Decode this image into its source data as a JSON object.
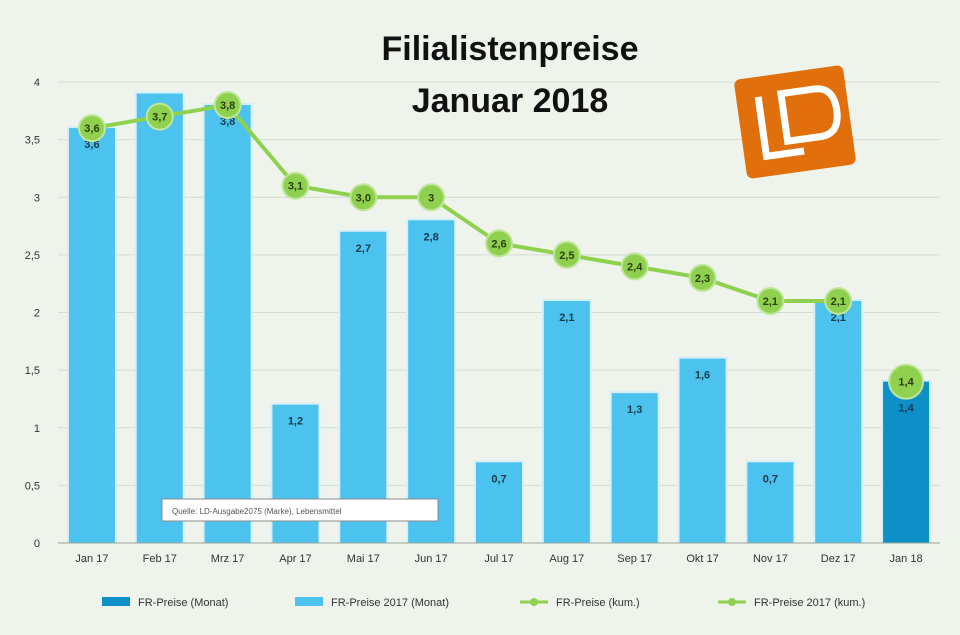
{
  "chart_data": {
    "type": "bar",
    "title_lines": [
      "Filialistenpreise",
      "Januar 2018"
    ],
    "categories": [
      "Jan 17",
      "Feb 17",
      "Mrz 17",
      "Apr 17",
      "Mai 17",
      "Jun 17",
      "Jul 17",
      "Aug 17",
      "Sep 17",
      "Okt 17",
      "Nov 17",
      "Dez 17",
      "Jan 18"
    ],
    "yticks": [
      "0",
      "0,5",
      "1",
      "1,5",
      "2",
      "2,5",
      "3",
      "3,5",
      "4"
    ],
    "ylim": [
      0,
      4
    ],
    "grid": true,
    "legend_position": "bottom",
    "series": [
      {
        "name": "FR-Preise (Monat)",
        "kind": "bar",
        "color": "#0d8fc8",
        "values": [
          null,
          null,
          null,
          null,
          null,
          null,
          null,
          null,
          null,
          null,
          null,
          null,
          1.4
        ],
        "labels": [
          "",
          "",
          "",
          "",
          "",
          "",
          "",
          "",
          "",
          "",
          "",
          "",
          "1,4"
        ]
      },
      {
        "name": "FR-Preise 2017 (Monat)",
        "kind": "bar",
        "color": "#4cc3ee",
        "values": [
          3.6,
          3.9,
          3.8,
          1.2,
          2.7,
          2.8,
          0.7,
          2.1,
          1.3,
          1.6,
          0.7,
          2.1,
          null
        ],
        "labels": [
          "3,6",
          "3,9",
          "3,8",
          "1,2",
          "2,7",
          "2,8",
          "0,7",
          "2,1",
          "1,3",
          "1,6",
          "0,7",
          "2,1",
          ""
        ]
      },
      {
        "name": "FR-Preise (kum.)",
        "kind": "line",
        "color": "#8fd14f",
        "values": [
          null,
          null,
          null,
          null,
          null,
          null,
          null,
          null,
          null,
          null,
          null,
          null,
          1.4
        ],
        "labels": [
          "",
          "",
          "",
          "",
          "",
          "",
          "",
          "",
          "",
          "",
          "",
          "",
          "1,4"
        ]
      },
      {
        "name": "FR-Preise 2017 (kum.)",
        "kind": "line",
        "color": "#8fd14f",
        "values": [
          3.6,
          3.7,
          3.8,
          3.1,
          3.0,
          3.0,
          2.6,
          2.5,
          2.4,
          2.3,
          2.1,
          2.1,
          null
        ],
        "labels": [
          "3,6",
          "3,7",
          "3,8",
          "3,1",
          "3,0",
          "3",
          "2,6",
          "2,5",
          "2,4",
          "2,3",
          "2,1",
          "2,1",
          ""
        ]
      }
    ],
    "source_note": "Quelle: LD-Ausgabe2075 (Marke), Lebensmittel",
    "logo_text": "LD"
  }
}
